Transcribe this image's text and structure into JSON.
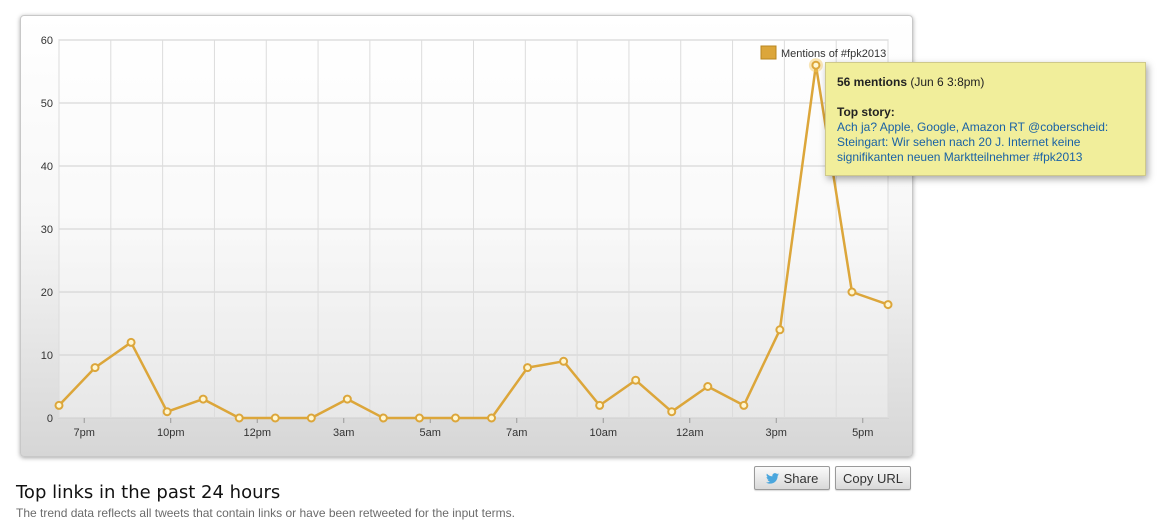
{
  "chart_data": {
    "type": "line",
    "series": [
      {
        "name": "Mentions of #fpk2013",
        "color": "#dca63a",
        "values": [
          2,
          8,
          12,
          1,
          3,
          0,
          0,
          0,
          3,
          0,
          0,
          0,
          0,
          8,
          9,
          2,
          6,
          1,
          5,
          2,
          14,
          56,
          20,
          18
        ]
      }
    ],
    "x_tick_labels": [
      "7pm",
      "10pm",
      "12pm",
      "3am",
      "5am",
      "7am",
      "10am",
      "12am",
      "3pm",
      "5pm"
    ],
    "y_ticks": [
      0,
      10,
      20,
      30,
      40,
      50,
      60
    ],
    "ylim": [
      0,
      60
    ],
    "grid": true,
    "legend_position": "top-right",
    "highlighted_point_index": 21
  },
  "tooltip": {
    "count_text": "56 mentions",
    "time_text": "(Jun 6 3:8pm)",
    "story_title": "Top story:",
    "story_text": "Ach ja? Apple, Google, Amazon RT @coberscheid: Steingart: Wir sehen nach 20 J. Internet keine signifikanten neuen Marktteilnehmer #fpk2013"
  },
  "buttons": {
    "share_label": "Share",
    "copy_label": "Copy URL"
  },
  "section": {
    "title": "Top links in the past 24 hours",
    "subtitle": "The trend data reflects all tweets that contain links or have been retweeted for the input terms."
  },
  "icons": {
    "share": "twitter-bird-icon"
  }
}
